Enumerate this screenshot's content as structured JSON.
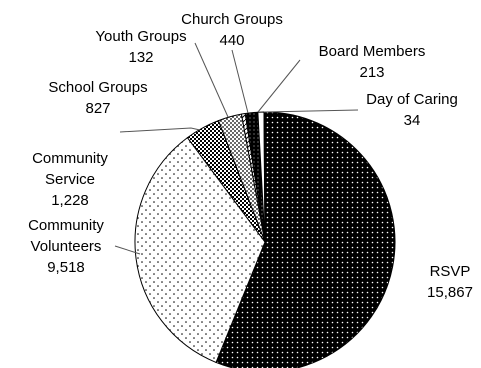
{
  "chart_data": {
    "type": "pie",
    "title": "",
    "slices": [
      {
        "label": "RSVP",
        "value": 15867,
        "display_value": "15,867",
        "pattern": "dense-dots-dark"
      },
      {
        "label": "Community Volunteers",
        "label_lines": [
          "Community",
          "Volunteers"
        ],
        "value": 9518,
        "display_value": "9,518",
        "pattern": "sparse-dots"
      },
      {
        "label": "Community Service",
        "label_lines": [
          "Community",
          "Service"
        ],
        "value": 1228,
        "display_value": "1,228",
        "pattern": "checker"
      },
      {
        "label": "School Groups",
        "value": 827,
        "display_value": "827",
        "pattern": "medium-dots"
      },
      {
        "label": "Youth Groups",
        "value": 132,
        "display_value": "132",
        "pattern": "diagonal-hatch"
      },
      {
        "label": "Church Groups",
        "value": 440,
        "display_value": "440",
        "pattern": "solid-dark"
      },
      {
        "label": "Board Members",
        "value": 213,
        "display_value": "213",
        "pattern": "white"
      },
      {
        "label": "Day of Caring",
        "value": 34,
        "display_value": "34",
        "pattern": "solid-black"
      }
    ],
    "legend": "none",
    "colors": {
      "outline": "#000000",
      "dark": "#000000",
      "light": "#ffffff"
    }
  }
}
